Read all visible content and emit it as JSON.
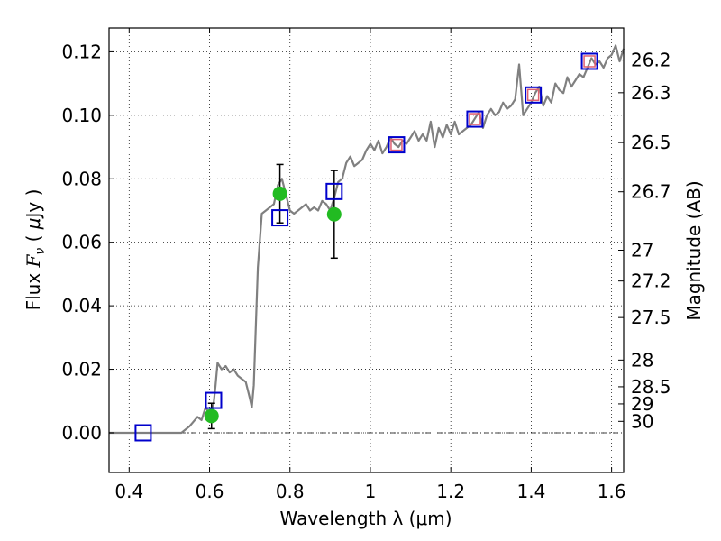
{
  "chart_data": {
    "type": "scatter",
    "xlabel": "Wavelength  λ (μm)",
    "ylabel_left": {
      "prefix": "Flux ",
      "var": "F",
      "sub": "ν",
      "unit_open": " ( ",
      "unit_mu": "μ",
      "unit_rest": "Jy )"
    },
    "ylabel_right": "Magnitude (AB)",
    "xlim": [
      0.35,
      1.63
    ],
    "ylim": [
      -0.0125,
      0.1275
    ],
    "grid": true,
    "xticks": [
      0.4,
      0.6,
      0.8,
      1.0,
      1.2,
      1.4,
      1.6
    ],
    "xtick_labels": [
      "0.4",
      "0.6",
      "0.8",
      "1",
      "1.2",
      "1.4",
      "1.6"
    ],
    "yticks": [
      0.0,
      0.02,
      0.04,
      0.06,
      0.08,
      0.1,
      0.12
    ],
    "ytick_labels": [
      "0.00",
      "0.02",
      "0.04",
      "0.06",
      "0.08",
      "0.10",
      "0.12"
    ],
    "right_ticks": [
      {
        "flux": 0.1174,
        "label": "26.2"
      },
      {
        "flux": 0.1071,
        "label": "26.3"
      },
      {
        "flux": 0.0914,
        "label": "26.5"
      },
      {
        "flux": 0.0759,
        "label": "26.7"
      },
      {
        "flux": 0.0575,
        "label": "27"
      },
      {
        "flux": 0.0478,
        "label": "27.2"
      },
      {
        "flux": 0.0363,
        "label": "27.5"
      },
      {
        "flux": 0.0229,
        "label": "28"
      },
      {
        "flux": 0.0145,
        "label": "28.5"
      },
      {
        "flux": 0.0091,
        "label": "29"
      },
      {
        "flux": 0.0036,
        "label": "30"
      }
    ],
    "colors": {
      "spectrum": "#808080",
      "model_square": "#0000cc",
      "inner_square": "#e06070",
      "observed": "#22bb22",
      "errorbar": "#000000"
    },
    "spectrum": {
      "x": [
        0.35,
        0.4,
        0.45,
        0.5,
        0.53,
        0.55,
        0.57,
        0.58,
        0.59,
        0.6,
        0.61,
        0.615,
        0.62,
        0.63,
        0.64,
        0.65,
        0.66,
        0.67,
        0.68,
        0.69,
        0.7,
        0.705,
        0.71,
        0.72,
        0.73,
        0.74,
        0.75,
        0.76,
        0.77,
        0.78,
        0.79,
        0.8,
        0.81,
        0.82,
        0.83,
        0.84,
        0.85,
        0.86,
        0.87,
        0.88,
        0.89,
        0.9,
        0.91,
        0.92,
        0.93,
        0.94,
        0.95,
        0.96,
        0.97,
        0.98,
        0.99,
        1.0,
        1.01,
        1.02,
        1.03,
        1.04,
        1.05,
        1.06,
        1.07,
        1.08,
        1.09,
        1.1,
        1.11,
        1.12,
        1.13,
        1.14,
        1.15,
        1.16,
        1.17,
        1.18,
        1.19,
        1.2,
        1.21,
        1.22,
        1.23,
        1.24,
        1.25,
        1.26,
        1.27,
        1.28,
        1.29,
        1.3,
        1.31,
        1.32,
        1.33,
        1.34,
        1.35,
        1.36,
        1.37,
        1.38,
        1.39,
        1.4,
        1.41,
        1.42,
        1.43,
        1.44,
        1.45,
        1.46,
        1.47,
        1.48,
        1.49,
        1.5,
        1.51,
        1.52,
        1.53,
        1.54,
        1.55,
        1.56,
        1.57,
        1.58,
        1.59,
        1.6,
        1.61,
        1.62,
        1.63
      ],
      "y": [
        0.0,
        0.0,
        0.0,
        0.0,
        0.0,
        0.002,
        0.005,
        0.004,
        0.008,
        0.006,
        0.009,
        0.015,
        0.022,
        0.02,
        0.021,
        0.019,
        0.02,
        0.018,
        0.017,
        0.016,
        0.011,
        0.008,
        0.015,
        0.052,
        0.069,
        0.07,
        0.071,
        0.072,
        0.078,
        0.08,
        0.075,
        0.07,
        0.069,
        0.07,
        0.071,
        0.072,
        0.07,
        0.071,
        0.07,
        0.073,
        0.072,
        0.07,
        0.074,
        0.079,
        0.08,
        0.085,
        0.087,
        0.084,
        0.085,
        0.086,
        0.089,
        0.091,
        0.089,
        0.092,
        0.088,
        0.09,
        0.093,
        0.091,
        0.09,
        0.092,
        0.091,
        0.093,
        0.095,
        0.092,
        0.094,
        0.092,
        0.098,
        0.09,
        0.096,
        0.093,
        0.097,
        0.094,
        0.098,
        0.094,
        0.095,
        0.096,
        0.097,
        0.099,
        0.101,
        0.096,
        0.1,
        0.102,
        0.1,
        0.101,
        0.104,
        0.102,
        0.103,
        0.105,
        0.116,
        0.1,
        0.102,
        0.104,
        0.107,
        0.109,
        0.103,
        0.106,
        0.104,
        0.11,
        0.108,
        0.107,
        0.112,
        0.109,
        0.111,
        0.113,
        0.112,
        0.115,
        0.118,
        0.116,
        0.117,
        0.115,
        0.118,
        0.119,
        0.122,
        0.117,
        0.121
      ]
    },
    "model_squares": [
      {
        "x": 0.435,
        "y": 0.0
      },
      {
        "x": 0.61,
        "y": 0.0102
      },
      {
        "x": 0.775,
        "y": 0.0677
      },
      {
        "x": 0.91,
        "y": 0.076
      },
      {
        "x": 1.065,
        "y": 0.0907
      },
      {
        "x": 1.26,
        "y": 0.0988
      },
      {
        "x": 1.405,
        "y": 0.1064
      },
      {
        "x": 1.545,
        "y": 0.117
      }
    ],
    "inner_squares": [
      {
        "x": 1.065,
        "y": 0.0907
      },
      {
        "x": 1.26,
        "y": 0.0988
      },
      {
        "x": 1.405,
        "y": 0.1064
      },
      {
        "x": 1.545,
        "y": 0.117
      }
    ],
    "observed": [
      {
        "x": 0.605,
        "y": 0.0053,
        "err": 0.004
      },
      {
        "x": 0.775,
        "y": 0.0753,
        "err": 0.0092
      },
      {
        "x": 0.91,
        "y": 0.0688,
        "err": 0.0138
      }
    ]
  }
}
